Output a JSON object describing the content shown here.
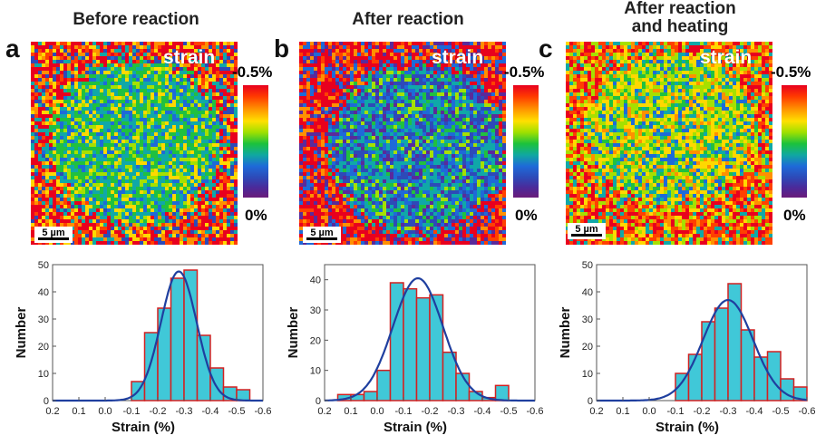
{
  "panels": [
    {
      "letter": "a",
      "title": [
        "Before reaction"
      ],
      "map_label": "strain",
      "scale_label": "5 µm",
      "cbar_top": "-0.5%",
      "cbar_bottom": "0%"
    },
    {
      "letter": "b",
      "title": [
        "After reaction"
      ],
      "map_label": "strain",
      "scale_label": "5 µm",
      "cbar_top": "-0.5%",
      "cbar_bottom": "0%"
    },
    {
      "letter": "c",
      "title": [
        "After reaction",
        "and heating"
      ],
      "map_label": "strain",
      "scale_label": "5 µm",
      "cbar_top": "-0.5%",
      "cbar_bottom": "0%"
    }
  ],
  "colors": {
    "bar_fill": "#40c8d8",
    "bar_edge": "#d42020",
    "fit_line": "#1f3f9f"
  },
  "chart_data": [
    {
      "type": "bar",
      "xlabel": "Strain (%)",
      "ylabel": "Number",
      "xlim": [
        0.2,
        -0.6
      ],
      "ylim": [
        0,
        50
      ],
      "xticks": [
        "0.2",
        "0.1",
        "0.0",
        "-0.1",
        "-0.2",
        "-0.3",
        "-0.4",
        "-0.5",
        "-0.6"
      ],
      "yticks": [
        "0",
        "10",
        "20",
        "30",
        "40",
        "50"
      ],
      "bins": [
        [
          -0.1,
          -0.15
        ],
        [
          -0.15,
          -0.2
        ],
        [
          -0.2,
          -0.25
        ],
        [
          -0.25,
          -0.3
        ],
        [
          -0.3,
          -0.35
        ],
        [
          -0.35,
          -0.4
        ],
        [
          -0.4,
          -0.45
        ],
        [
          -0.45,
          -0.5
        ],
        [
          -0.5,
          -0.55
        ]
      ],
      "values": [
        7,
        25,
        34,
        45,
        48,
        24,
        12,
        5,
        4
      ],
      "fit": {
        "peak": 47.5,
        "center": -0.28,
        "sigma": 0.068
      }
    },
    {
      "type": "bar",
      "xlabel": "Strain (%)",
      "ylabel": "Number",
      "xlim": [
        0.2,
        -0.6
      ],
      "ylim": [
        0,
        45
      ],
      "xticks": [
        "0.2",
        "0.1",
        "0.0",
        "-0.1",
        "-0.2",
        "-0.3",
        "-0.4",
        "-0.5",
        "-0.6"
      ],
      "yticks": [
        "0",
        "10",
        "20",
        "30",
        "40"
      ],
      "bins": [
        [
          0.15,
          0.1
        ],
        [
          0.1,
          0.05
        ],
        [
          0.05,
          0.0
        ],
        [
          0.0,
          -0.05
        ],
        [
          -0.05,
          -0.1
        ],
        [
          -0.1,
          -0.15
        ],
        [
          -0.15,
          -0.2
        ],
        [
          -0.2,
          -0.25
        ],
        [
          -0.25,
          -0.3
        ],
        [
          -0.3,
          -0.35
        ],
        [
          -0.35,
          -0.4
        ],
        [
          -0.4,
          -0.45
        ],
        [
          -0.45,
          -0.5
        ]
      ],
      "values": [
        2,
        2,
        3,
        10,
        39,
        37,
        34,
        35,
        16,
        9,
        3,
        1,
        5
      ],
      "fit": {
        "peak": 40.5,
        "center": -0.155,
        "sigma": 0.095
      }
    },
    {
      "type": "bar",
      "xlabel": "Strain (%)",
      "ylabel": "Number",
      "xlim": [
        0.2,
        -0.6
      ],
      "ylim": [
        0,
        50
      ],
      "xticks": [
        "0.2",
        "0.1",
        "0.0",
        "-0.1",
        "-0.2",
        "-0.3",
        "-0.4",
        "-0.5",
        "-0.6"
      ],
      "yticks": [
        "0",
        "10",
        "20",
        "30",
        "40",
        "50"
      ],
      "bins": [
        [
          -0.1,
          -0.15
        ],
        [
          -0.15,
          -0.2
        ],
        [
          -0.2,
          -0.25
        ],
        [
          -0.25,
          -0.3
        ],
        [
          -0.3,
          -0.35
        ],
        [
          -0.35,
          -0.4
        ],
        [
          -0.4,
          -0.45
        ],
        [
          -0.45,
          -0.5
        ],
        [
          -0.5,
          -0.55
        ],
        [
          -0.55,
          -0.6
        ]
      ],
      "values": [
        10,
        17,
        29,
        34,
        43,
        26,
        16,
        18,
        8,
        5
      ],
      "fit": {
        "peak": 37,
        "center": -0.3,
        "sigma": 0.095
      }
    }
  ]
}
